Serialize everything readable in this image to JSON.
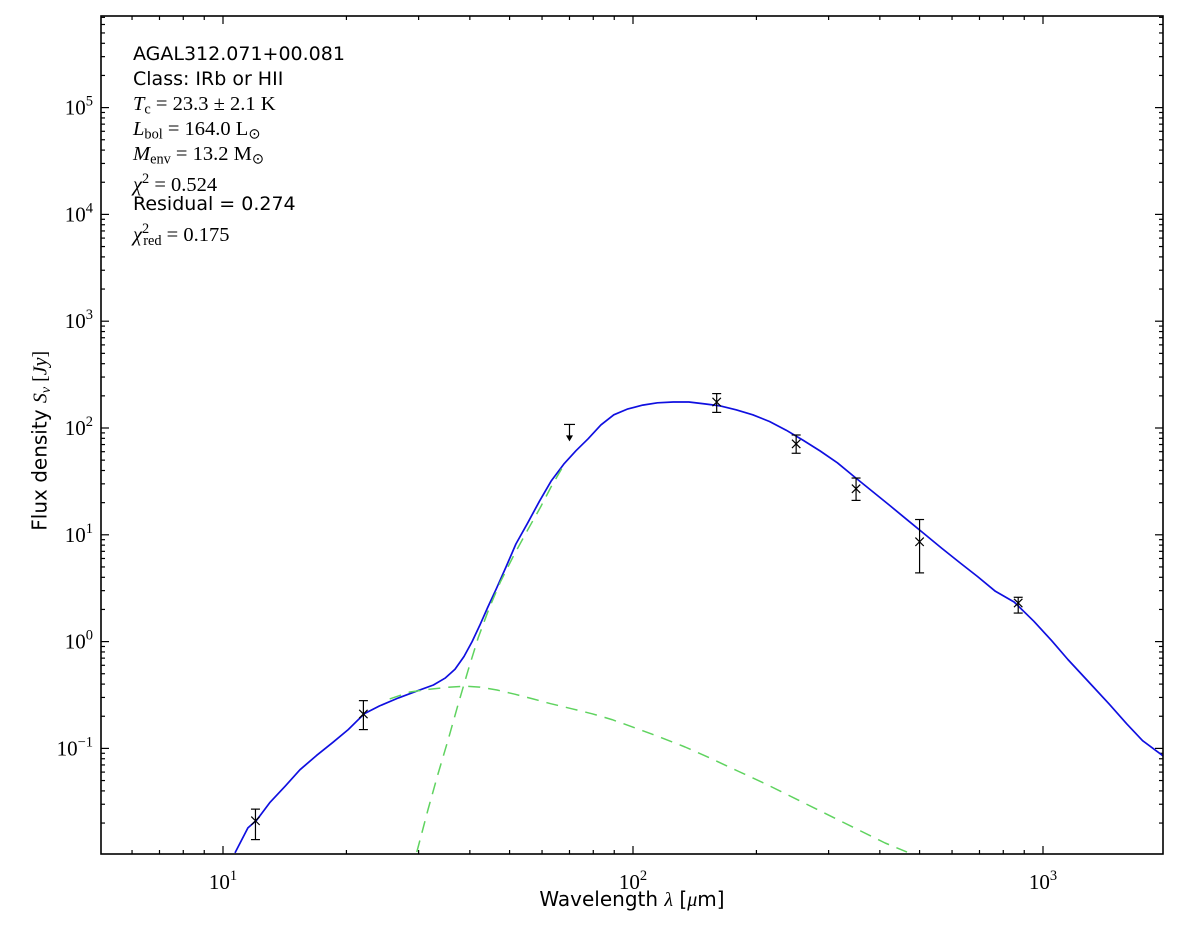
{
  "figure": {
    "background": "#ffffff",
    "frame_color": "#000000",
    "annotation": {
      "lines": [
        {
          "name": "source-name",
          "segments": [
            {
              "t": "AGAL312.071+00.081",
              "f": "ss"
            }
          ]
        },
        {
          "name": "class",
          "segments": [
            {
              "t": "Class: IRb or HII",
              "f": "ss"
            }
          ]
        },
        {
          "name": "dust-temperature",
          "segments": [
            {
              "t": "T",
              "f": "si"
            },
            {
              "t": "c",
              "f": "sr",
              "v": "sub"
            },
            {
              "t": " = 23.3 ± 2.1 K",
              "f": "sr"
            }
          ]
        },
        {
          "name": "bolometric-luminosity",
          "segments": [
            {
              "t": "L",
              "f": "si"
            },
            {
              "t": "bol",
              "f": "sr",
              "v": "sub"
            },
            {
              "t": " = 164.0 L",
              "f": "sr"
            },
            {
              "t": "⊙",
              "f": "sr",
              "v": "sub"
            }
          ]
        },
        {
          "name": "envelope-mass",
          "segments": [
            {
              "t": "M",
              "f": "si"
            },
            {
              "t": "env",
              "f": "sr",
              "v": "sub"
            },
            {
              "t": " = 13.2 M",
              "f": "sr"
            },
            {
              "t": "⊙",
              "f": "sr",
              "v": "sub"
            }
          ]
        },
        {
          "name": "chi-squared",
          "segments": [
            {
              "t": "χ",
              "f": "si"
            },
            {
              "t": "2",
              "f": "sr",
              "v": "sup"
            },
            {
              "t": " = 0.524",
              "f": "sr"
            }
          ]
        },
        {
          "name": "residual",
          "segments": [
            {
              "t": "Residual = 0.274",
              "f": "ss"
            }
          ]
        },
        {
          "name": "chi-squared-reduced",
          "segments": [
            {
              "t": "χ",
              "f": "si"
            },
            {
              "t": "2",
              "f": "sr",
              "v": "sup"
            },
            {
              "t": "red",
              "f": "sr",
              "v": "subt"
            },
            {
              "t": " = 0.175",
              "f": "sr"
            }
          ]
        }
      ]
    },
    "x_axis": {
      "label_text": "Wavelength λ [μm]",
      "label_segments": [
        {
          "t": "Wavelength ",
          "f": "ss"
        },
        {
          "t": "λ",
          "f": "si"
        },
        {
          "t": " [",
          "f": "ss"
        },
        {
          "t": "μ",
          "f": "si"
        },
        {
          "t": "m]",
          "f": "ss"
        }
      ]
    },
    "y_axis": {
      "label_text": "Flux density Sν [Jy]",
      "label_segments": [
        {
          "t": "Flux density ",
          "f": "ss"
        },
        {
          "t": "S",
          "f": "si"
        },
        {
          "t": "ν",
          "f": "si",
          "v": "sub"
        },
        {
          "t": " [",
          "f": "sr"
        },
        {
          "t": "Jy",
          "f": "si"
        },
        {
          "t": "]",
          "f": "sr"
        }
      ]
    }
  },
  "chart_data": {
    "type": "line",
    "title": "AGAL312.071+00.081",
    "subtitle": "Class: IRb or HII",
    "xlabel": "Wavelength λ [μm]",
    "ylabel": "Flux density Sν [Jy]",
    "x_scale": "log",
    "y_scale": "log",
    "xlim": [
      5.05,
      1965
    ],
    "ylim": [
      0.0105,
      690000
    ],
    "x_tick_exponents": [
      1,
      2,
      3
    ],
    "y_tick_exponents": [
      -1,
      0,
      1,
      2,
      3,
      4,
      5
    ],
    "grid": false,
    "legend": null,
    "fit_parameters": {
      "source": "AGAL312.071+00.081",
      "class": "IRb or HII",
      "T_c_K": "23.3 ± 2.1",
      "L_bol_Lsun": 164.0,
      "M_env_Msun": 13.2,
      "chi2": 0.524,
      "residual": 0.274,
      "chi2_red": 0.175
    },
    "colors": {
      "model_total": "#0f0fe0",
      "model_components": "#5fd35f",
      "data_points": "#000000"
    },
    "series": [
      {
        "name": "total-model-fit",
        "line_style": "solid",
        "color_key": "model_total",
        "points": [
          [
            10.7,
            0.0105
          ],
          [
            11.5,
            0.018
          ],
          [
            12.1,
            0.0214
          ],
          [
            13.0,
            0.031
          ],
          [
            14.2,
            0.0446
          ],
          [
            15.4,
            0.063
          ],
          [
            16.9,
            0.0856
          ],
          [
            18.5,
            0.113
          ],
          [
            20.2,
            0.15
          ],
          [
            22.1,
            0.211
          ],
          [
            24.1,
            0.25
          ],
          [
            26.8,
            0.297
          ],
          [
            29.7,
            0.344
          ],
          [
            32.6,
            0.392
          ],
          [
            34.8,
            0.454
          ],
          [
            36.8,
            0.55
          ],
          [
            38.7,
            0.726
          ],
          [
            40.5,
            1.0
          ],
          [
            42.3,
            1.42
          ],
          [
            44.2,
            2.08
          ],
          [
            46.4,
            3.12
          ],
          [
            49.0,
            5.0
          ],
          [
            51.8,
            8.2
          ],
          [
            55.3,
            12.8
          ],
          [
            59.1,
            20.6
          ],
          [
            63.1,
            31.7
          ],
          [
            67.8,
            45.9
          ],
          [
            72.6,
            61.3
          ],
          [
            77.7,
            79.3
          ],
          [
            83.5,
            107
          ],
          [
            89.8,
            133
          ],
          [
            97.2,
            151
          ],
          [
            105.6,
            164
          ],
          [
            114.7,
            172
          ],
          [
            125.3,
            175
          ],
          [
            136.9,
            175
          ],
          [
            149.5,
            168
          ],
          [
            163.3,
            161
          ],
          [
            178.4,
            148
          ],
          [
            196.0,
            133
          ],
          [
            215.2,
            115
          ],
          [
            236.4,
            95.4
          ],
          [
            259.7,
            77.0
          ],
          [
            286.1,
            60.9
          ],
          [
            315.2,
            47.2
          ],
          [
            347.2,
            34.8
          ],
          [
            382.6,
            25.7
          ],
          [
            421.5,
            19.0
          ],
          [
            464.4,
            14.0
          ],
          [
            511.7,
            10.3
          ],
          [
            565.9,
            7.5
          ],
          [
            625.9,
            5.5
          ],
          [
            692.2,
            4.07
          ],
          [
            765.6,
            2.96
          ],
          [
            850,
            2.35
          ],
          [
            950,
            1.55
          ],
          [
            1050,
            1.02
          ],
          [
            1150,
            0.68
          ],
          [
            1300,
            0.41
          ],
          [
            1450,
            0.26
          ],
          [
            1600,
            0.17
          ],
          [
            1750,
            0.118
          ],
          [
            1963,
            0.085
          ]
        ]
      },
      {
        "name": "cold-envelope-component",
        "line_style": "dashed",
        "color_key": "model_components",
        "points": [
          [
            29.7,
            0.0107
          ],
          [
            31.6,
            0.0265
          ],
          [
            33.4,
            0.0564
          ],
          [
            35.4,
            0.12
          ],
          [
            37.4,
            0.254
          ],
          [
            39.6,
            0.539
          ],
          [
            41.9,
            1.08
          ],
          [
            44.6,
            2.06
          ],
          [
            47.5,
            3.62
          ],
          [
            51.1,
            6.35
          ],
          [
            55.2,
            10.9
          ],
          [
            59.5,
            18.2
          ],
          [
            63.1,
            28.0
          ],
          [
            67.8,
            45.0
          ]
        ]
      },
      {
        "name": "warm-component",
        "line_style": "dashed",
        "color_key": "model_components",
        "points": [
          [
            25.5,
            0.291
          ],
          [
            28.6,
            0.337
          ],
          [
            32.1,
            0.359
          ],
          [
            35.8,
            0.375
          ],
          [
            38.9,
            0.382
          ],
          [
            42.3,
            0.375
          ],
          [
            46.6,
            0.352
          ],
          [
            51.5,
            0.322
          ],
          [
            57.0,
            0.291
          ],
          [
            63.0,
            0.262
          ],
          [
            71.0,
            0.235
          ],
          [
            79.5,
            0.211
          ],
          [
            88.9,
            0.186
          ],
          [
            101,
            0.156
          ],
          [
            116,
            0.128
          ],
          [
            134,
            0.103
          ],
          [
            154,
            0.0813
          ],
          [
            180,
            0.0614
          ],
          [
            211,
            0.0463
          ],
          [
            248,
            0.0341
          ],
          [
            294,
            0.0247
          ],
          [
            348,
            0.0179
          ],
          [
            412,
            0.013
          ],
          [
            466,
            0.0107
          ]
        ]
      }
    ],
    "data_points": [
      {
        "wavelength_um": 12,
        "flux_jy": 0.021,
        "flux_lo_jy": 0.014,
        "flux_hi_jy": 0.027
      },
      {
        "wavelength_um": 22,
        "flux_jy": 0.21,
        "flux_lo_jy": 0.15,
        "flux_hi_jy": 0.28
      },
      {
        "wavelength_um": 160,
        "flux_jy": 175,
        "flux_lo_jy": 140,
        "flux_hi_jy": 210
      },
      {
        "wavelength_um": 250,
        "flux_jy": 71,
        "flux_lo_jy": 58,
        "flux_hi_jy": 86
      },
      {
        "wavelength_um": 350,
        "flux_jy": 27,
        "flux_lo_jy": 21,
        "flux_hi_jy": 34
      },
      {
        "wavelength_um": 500,
        "flux_jy": 8.6,
        "flux_lo_jy": 4.4,
        "flux_hi_jy": 13.9
      },
      {
        "wavelength_um": 870,
        "flux_jy": 2.3,
        "flux_lo_jy": 1.85,
        "flux_hi_jy": 2.6
      }
    ],
    "upper_limits": [
      {
        "wavelength_um": 70,
        "flux_jy": 108
      }
    ]
  }
}
